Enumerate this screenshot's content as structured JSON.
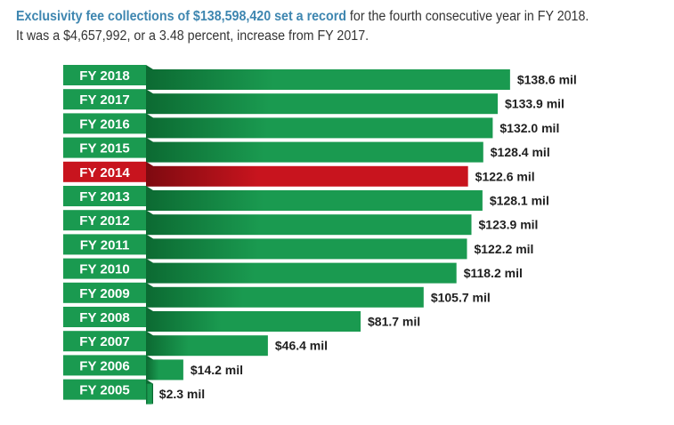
{
  "headline": {
    "lead": "Exclusivity fee collections of $138,598,420 set a record",
    "rest": " for the fourth consecutive year in FY 2018. It was a $4,657,992, or a 3.48 percent, increase from FY 2017."
  },
  "colors": {
    "bar_green": "#1a9a50",
    "bar_green_dark": "#0c6a32",
    "bar_highlight": "#c8141e",
    "bar_highlight_dark": "#7e0a10",
    "headline_accent": "#3e86b0"
  },
  "chart_data": {
    "type": "bar",
    "orientation": "horizontal",
    "categories": [
      "FY 2018",
      "FY 2017",
      "FY 2016",
      "FY 2015",
      "FY 2014",
      "FY 2013",
      "FY 2012",
      "FY 2011",
      "FY 2010",
      "FY 2009",
      "FY 2008",
      "FY 2007",
      "FY 2006",
      "FY 2005"
    ],
    "values": [
      138.6,
      133.9,
      132.0,
      128.4,
      122.6,
      128.1,
      123.9,
      122.2,
      118.2,
      105.7,
      81.7,
      46.4,
      14.2,
      2.3
    ],
    "value_labels": [
      "$138.6 mil",
      "$133.9 mil",
      "$132.0 mil",
      "$128.4 mil",
      "$122.6 mil",
      "$128.1 mil",
      "$123.9 mil",
      "$122.2 mil",
      "$118.2 mil",
      "$105.7 mil",
      "$81.7 mil",
      "$46.4 mil",
      "$14.2 mil",
      "$2.3 mil"
    ],
    "highlighted_category": "FY 2014",
    "units": "mil",
    "title": "",
    "xlabel": "",
    "ylabel": "",
    "xlim": [
      0,
      140
    ],
    "grid": false,
    "legend": "none"
  }
}
